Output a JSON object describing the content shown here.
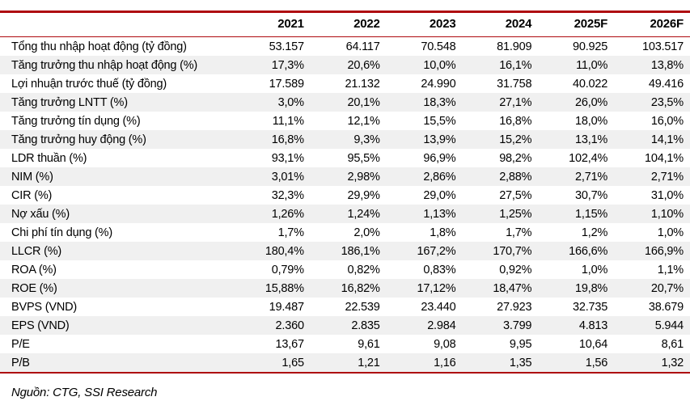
{
  "table": {
    "columns": [
      "2021",
      "2022",
      "2023",
      "2024",
      "2025F",
      "2026F"
    ],
    "rows": [
      {
        "label": "Tổng thu nhập hoạt động (tỷ đồng)",
        "values": [
          "53.157",
          "64.117",
          "70.548",
          "81.909",
          "90.925",
          "103.517"
        ]
      },
      {
        "label": "Tăng trưởng thu nhập hoạt động (%)",
        "values": [
          "17,3%",
          "20,6%",
          "10,0%",
          "16,1%",
          "11,0%",
          "13,8%"
        ]
      },
      {
        "label": "Lợi nhuận trước thuế (tỷ đồng)",
        "values": [
          "17.589",
          "21.132",
          "24.990",
          "31.758",
          "40.022",
          "49.416"
        ]
      },
      {
        "label": "Tăng trưởng LNTT (%)",
        "values": [
          "3,0%",
          "20,1%",
          "18,3%",
          "27,1%",
          "26,0%",
          "23,5%"
        ]
      },
      {
        "label": "Tăng trưởng tín dụng (%)",
        "values": [
          "11,1%",
          "12,1%",
          "15,5%",
          "16,8%",
          "18,0%",
          "16,0%"
        ]
      },
      {
        "label": "Tăng trưởng huy động (%)",
        "values": [
          "16,8%",
          "9,3%",
          "13,9%",
          "15,2%",
          "13,1%",
          "14,1%"
        ]
      },
      {
        "label": "LDR thuần (%)",
        "values": [
          "93,1%",
          "95,5%",
          "96,9%",
          "98,2%",
          "102,4%",
          "104,1%"
        ]
      },
      {
        "label": "NIM (%)",
        "values": [
          "3,01%",
          "2,98%",
          "2,86%",
          "2,88%",
          "2,71%",
          "2,71%"
        ]
      },
      {
        "label": "CIR (%)",
        "values": [
          "32,3%",
          "29,9%",
          "29,0%",
          "27,5%",
          "30,7%",
          "31,0%"
        ]
      },
      {
        "label": "Nợ xấu (%)",
        "values": [
          "1,26%",
          "1,24%",
          "1,13%",
          "1,25%",
          "1,15%",
          "1,10%"
        ]
      },
      {
        "label": "Chi phí tín dụng (%)",
        "values": [
          "1,7%",
          "2,0%",
          "1,8%",
          "1,7%",
          "1,2%",
          "1,0%"
        ]
      },
      {
        "label": "LLCR (%)",
        "values": [
          "180,4%",
          "186,1%",
          "167,2%",
          "170,7%",
          "166,6%",
          "166,9%"
        ]
      },
      {
        "label": "ROA (%)",
        "values": [
          "0,79%",
          "0,82%",
          "0,83%",
          "0,92%",
          "1,0%",
          "1,1%"
        ]
      },
      {
        "label": "ROE (%)",
        "values": [
          "15,88%",
          "16,82%",
          "17,12%",
          "18,47%",
          "19,8%",
          "20,7%"
        ]
      },
      {
        "label": "BVPS (VND)",
        "values": [
          "19.487",
          "22.539",
          "23.440",
          "27.923",
          "32.735",
          "38.679"
        ]
      },
      {
        "label": "EPS (VND)",
        "values": [
          "2.360",
          "2.835",
          "2.984",
          "3.799",
          "4.813",
          "5.944"
        ]
      },
      {
        "label": "P/E",
        "values": [
          "13,67",
          "9,61",
          "9,08",
          "9,95",
          "10,64",
          "8,61"
        ]
      },
      {
        "label": "P/B",
        "values": [
          "1,65",
          "1,21",
          "1,16",
          "1,35",
          "1,56",
          "1,32"
        ]
      }
    ]
  },
  "source_note": "Nguồn: CTG, SSI Research",
  "colors": {
    "accent_red": "#ae0a0f",
    "stripe_gray": "#f0f0f0",
    "text": "#000000"
  }
}
